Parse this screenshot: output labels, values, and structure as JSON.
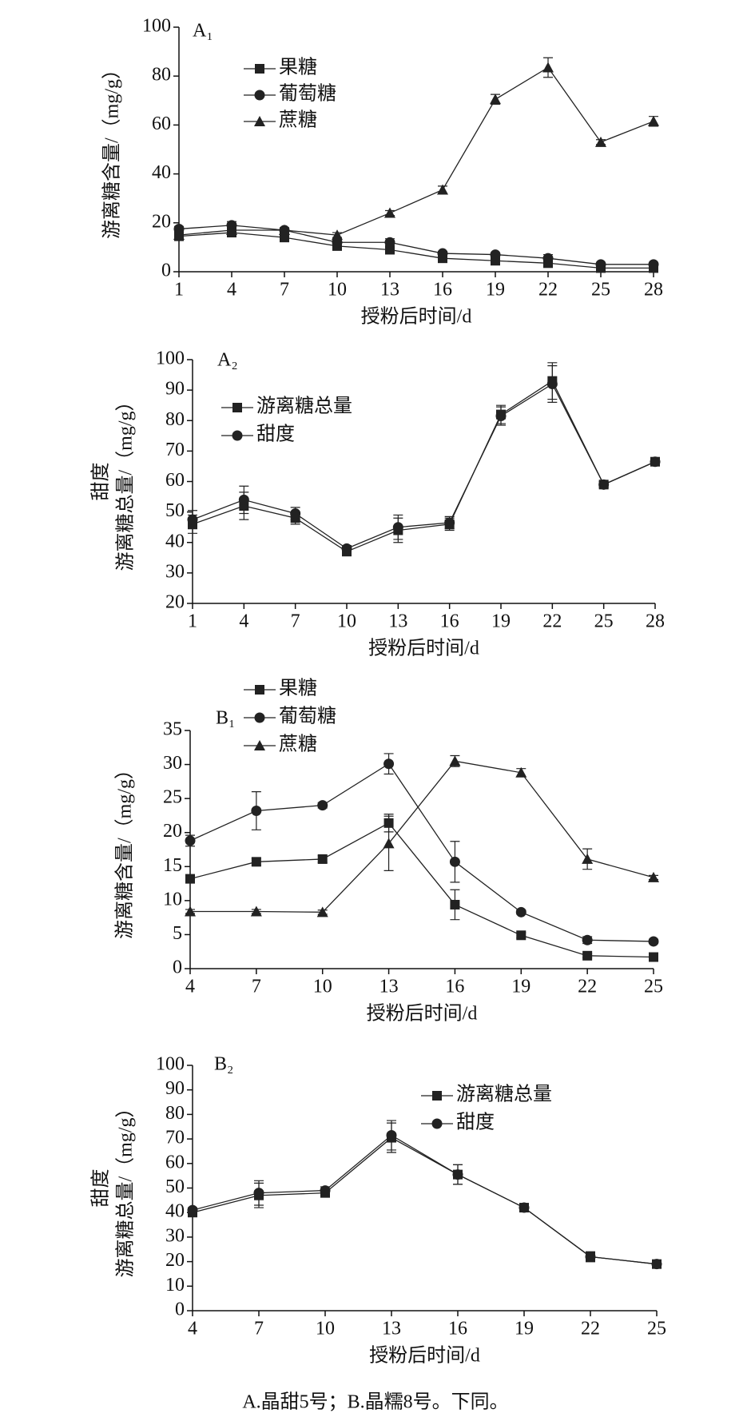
{
  "chart_data": [
    {
      "type": "line",
      "panel_label": "A₁",
      "ylabel": [
        "游离糖含量/（mg/g）"
      ],
      "xlabel": "授粉后时间/d",
      "x": [
        1,
        4,
        7,
        10,
        13,
        16,
        19,
        22,
        25,
        28
      ],
      "xlim": [
        1,
        28
      ],
      "xticks": [
        1,
        4,
        7,
        10,
        13,
        16,
        19,
        22,
        25,
        28
      ],
      "ylim": [
        0,
        100
      ],
      "yticks": [
        0,
        20,
        40,
        60,
        80,
        100
      ],
      "series": [
        {
          "name": "果糖",
          "marker": "square",
          "color": "#222",
          "values": [
            14.5,
            16,
            14,
            10.5,
            9,
            5.5,
            4.5,
            3.5,
            1.5,
            1.5
          ],
          "errors": [
            1,
            1,
            1,
            1,
            1,
            0.8,
            0.8,
            0.8,
            0.5,
            0.5
          ]
        },
        {
          "name": "葡萄糖",
          "marker": "circle",
          "color": "#222",
          "values": [
            17.5,
            19,
            17,
            12,
            12,
            7.5,
            7,
            5.5,
            3,
            3
          ],
          "errors": [
            1,
            1.5,
            1,
            1,
            1.5,
            0.8,
            0.8,
            1.5,
            0.5,
            0.5
          ]
        },
        {
          "name": "蔗糖",
          "marker": "triangle",
          "color": "#222",
          "values": [
            15,
            17,
            17,
            15,
            24,
            33.5,
            70.5,
            83.5,
            53,
            61.5
          ],
          "errors": [
            1,
            1,
            1,
            1,
            1,
            1.5,
            2,
            4,
            1,
            2
          ]
        }
      ]
    },
    {
      "type": "line",
      "panel_label": "A₂",
      "ylabel": [
        "甜度",
        "游离糖总量/（mg/g）"
      ],
      "xlabel": "授粉后时间/d",
      "x": [
        1,
        4,
        7,
        10,
        13,
        16,
        19,
        22,
        25,
        28
      ],
      "xlim": [
        1,
        28
      ],
      "xticks": [
        1,
        4,
        7,
        10,
        13,
        16,
        19,
        22,
        25,
        28
      ],
      "ylim": [
        20,
        100
      ],
      "yticks": [
        20,
        30,
        40,
        50,
        60,
        70,
        80,
        90,
        100
      ],
      "series": [
        {
          "name": "游离糖总量",
          "marker": "square",
          "color": "#222",
          "values": [
            46,
            52,
            48,
            37,
            44,
            46,
            82,
            93,
            59,
            66.5
          ],
          "errors": [
            3,
            4.5,
            2,
            1,
            4,
            2,
            3,
            6,
            1,
            1
          ]
        },
        {
          "name": "甜度",
          "marker": "circle",
          "color": "#222",
          "values": [
            47.5,
            54,
            49.5,
            38,
            45,
            46.5,
            81.5,
            92,
            59,
            66.5
          ],
          "errors": [
            3,
            4.5,
            2,
            1,
            4,
            2,
            3,
            6,
            1,
            1
          ]
        }
      ]
    },
    {
      "type": "line",
      "panel_label": "B₁",
      "ylabel": [
        "游离糖含量/（mg/g）"
      ],
      "xlabel": "授粉后时间/d",
      "x": [
        4,
        7,
        10,
        13,
        16,
        19,
        22,
        25
      ],
      "xlim": [
        4,
        25
      ],
      "xticks": [
        4,
        7,
        10,
        13,
        16,
        19,
        22,
        25
      ],
      "ylim": [
        0,
        35
      ],
      "yticks": [
        0,
        5,
        10,
        15,
        20,
        25,
        30,
        35
      ],
      "series": [
        {
          "name": "果糖",
          "marker": "square",
          "color": "#222",
          "values": [
            13.2,
            15.7,
            16.1,
            21.4,
            9.4,
            4.9,
            1.9,
            1.7
          ],
          "errors": [
            0.5,
            0.5,
            0.5,
            1.3,
            2.2,
            0.4,
            0.3,
            0.3
          ]
        },
        {
          "name": "葡萄糖",
          "marker": "circle",
          "color": "#222",
          "values": [
            18.8,
            23.2,
            24,
            30.1,
            15.7,
            8.3,
            4.2,
            4.0
          ],
          "errors": [
            0.8,
            2.8,
            0.4,
            1.5,
            3,
            0.3,
            0.5,
            0.3
          ]
        },
        {
          "name": "蔗糖",
          "marker": "triangle",
          "color": "#222",
          "values": [
            8.4,
            8.4,
            8.3,
            18.4,
            30.5,
            28.8,
            16.1,
            13.4
          ],
          "errors": [
            0.3,
            0.3,
            0.3,
            4,
            0.8,
            0.6,
            1.5,
            0.3
          ]
        }
      ]
    },
    {
      "type": "line",
      "panel_label": "B₂",
      "ylabel": [
        "甜度",
        "游离糖总量/（mg/g）"
      ],
      "xlabel": "授粉后时间/d",
      "x": [
        4,
        7,
        10,
        13,
        16,
        19,
        22,
        25
      ],
      "xlim": [
        4,
        25
      ],
      "xticks": [
        4,
        7,
        10,
        13,
        16,
        19,
        22,
        25
      ],
      "ylim": [
        0,
        100
      ],
      "yticks": [
        0,
        10,
        20,
        30,
        40,
        50,
        60,
        70,
        80,
        90,
        100
      ],
      "series": [
        {
          "name": "游离糖总量",
          "marker": "square",
          "color": "#222",
          "values": [
            40,
            47,
            48,
            70.5,
            55.5,
            42,
            22,
            19
          ],
          "errors": [
            1,
            5,
            1.5,
            6,
            4,
            1,
            2,
            1
          ]
        },
        {
          "name": "甜度",
          "marker": "circle",
          "color": "#222",
          "values": [
            41,
            48,
            49,
            71.5,
            55.5,
            42,
            22,
            19
          ],
          "errors": [
            1,
            5,
            1.5,
            6,
            4,
            1,
            2,
            1
          ]
        }
      ]
    }
  ],
  "caption": "A.晶甜5号；B.晶糯8号。下同。"
}
